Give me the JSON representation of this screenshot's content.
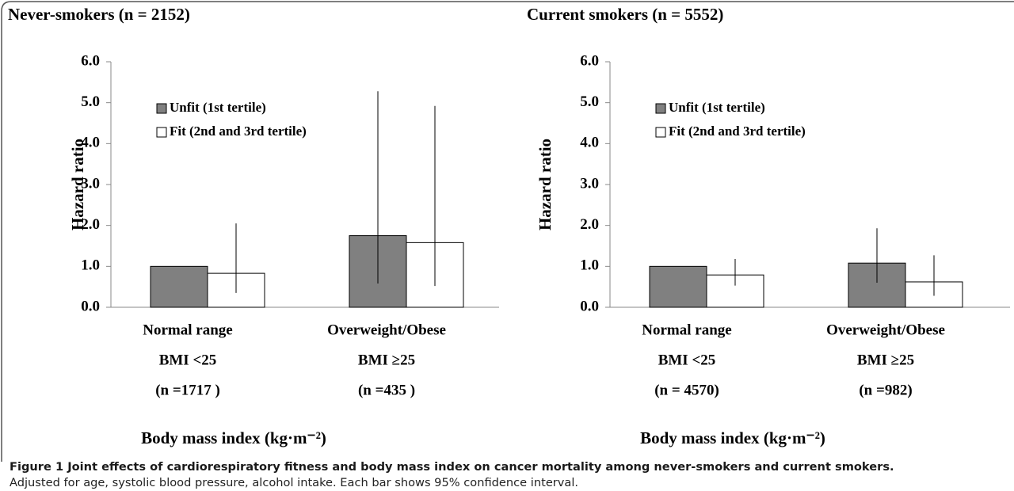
{
  "chart_data": [
    {
      "type": "bar",
      "title": "Never-smokers (n = 2152)",
      "y_label": "Hazard ratio",
      "x_label": "Body mass index (kg·m⁻²)",
      "categories": [
        [
          "Normal range",
          "BMI <25",
          "(n =1717 )"
        ],
        [
          "Overweight/Obese",
          "BMI ≥25",
          "(n =435 )"
        ]
      ],
      "series": [
        {
          "name": "Unfit (1st tertile)",
          "color": "#808080",
          "values": [
            1.0,
            1.75
          ],
          "lower": [
            null,
            0.58
          ],
          "upper": [
            null,
            5.28
          ]
        },
        {
          "name": "Fit (2nd and 3rd tertile)",
          "color": "#ffffff",
          "values": [
            0.83,
            1.58
          ],
          "lower": [
            0.35,
            0.52
          ],
          "upper": [
            2.05,
            4.92
          ]
        }
      ],
      "ylim": [
        0,
        6
      ],
      "yticks": [
        {
          "value": 0,
          "label": "0.0"
        },
        {
          "value": 1,
          "label": "1.0"
        },
        {
          "value": 2,
          "label": "2.0"
        },
        {
          "value": 3,
          "label": "3.0"
        },
        {
          "value": 4,
          "label": "4.0"
        },
        {
          "value": 5,
          "label": "5.0"
        },
        {
          "value": 6,
          "label": "6.0"
        }
      ],
      "legend": "top-left"
    },
    {
      "type": "bar",
      "title": "Current smokers (n = 5552)",
      "y_label": "Hazard ratio",
      "x_label": "Body mass index (kg·m⁻²)",
      "categories": [
        [
          "Normal range",
          "BMI <25",
          "(n = 4570)"
        ],
        [
          "Overweight/Obese",
          "BMI ≥25",
          "(n =982)"
        ]
      ],
      "series": [
        {
          "name": "Unfit (1st tertile)",
          "color": "#808080",
          "values": [
            1.0,
            1.08
          ],
          "lower": [
            null,
            0.6
          ],
          "upper": [
            null,
            1.93
          ]
        },
        {
          "name": "Fit (2nd and 3rd tertile)",
          "color": "#ffffff",
          "values": [
            0.79,
            0.62
          ],
          "lower": [
            0.53,
            0.28
          ],
          "upper": [
            1.18,
            1.27
          ]
        }
      ],
      "ylim": [
        0,
        6
      ],
      "yticks": [
        {
          "value": 0,
          "label": "0.0"
        },
        {
          "value": 1,
          "label": "1.0"
        },
        {
          "value": 2,
          "label": "2.0"
        },
        {
          "value": 3,
          "label": "3.0"
        },
        {
          "value": 4,
          "label": "4.0"
        },
        {
          "value": 5,
          "label": "5.0"
        },
        {
          "value": 6,
          "label": "6.0"
        }
      ],
      "legend": "top-left"
    }
  ],
  "caption": {
    "title": "Figure 1 Joint effects of cardiorespiratory fitness and body mass index on cancer mortality among never-smokers and current smokers.",
    "text": "Adjusted for age, systolic blood pressure, alcohol intake. Each bar shows 95% confidence interval."
  }
}
